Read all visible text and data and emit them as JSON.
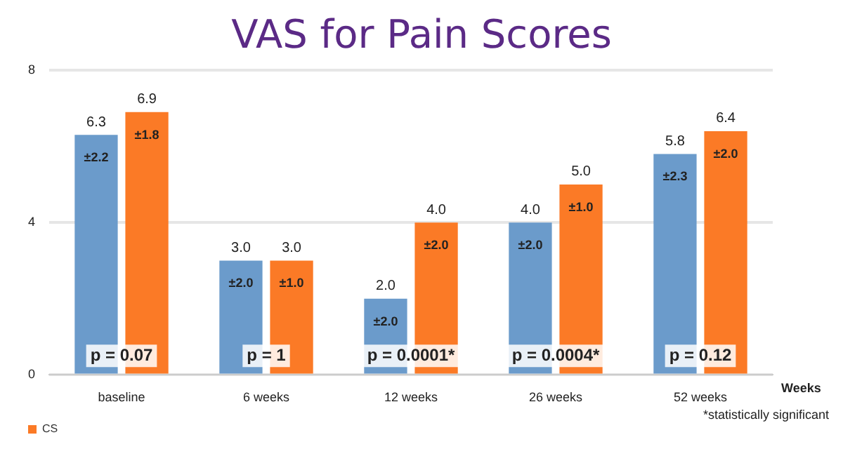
{
  "chart_data": {
    "type": "bar",
    "title": "VAS for Pain Scores",
    "xlabel": "Weeks",
    "categories": [
      "baseline",
      "6 weeks",
      "12 weeks",
      "26 weeks",
      "52 weeks"
    ],
    "series": [
      {
        "color": "#6b9bcb",
        "values": [
          6.3,
          3.0,
          2.0,
          4.0,
          5.8
        ],
        "value_labels": [
          "6.3",
          "3.0",
          "2.0",
          "4.0",
          "5.8"
        ]
      },
      {
        "name": "CS",
        "color": "#fb7a26",
        "values": [
          6.9,
          3.0,
          4.0,
          5.0,
          6.4
        ],
        "value_labels": [
          "6.9",
          "3.0",
          "4.0",
          "5.0",
          "6.4"
        ]
      }
    ],
    "ylim": [
      0,
      8
    ],
    "yticks": [
      0,
      4,
      8
    ],
    "grid": "y",
    "legend": "bottom left",
    "annotations": [
      "±2.2",
      "±1.8",
      "±2.0",
      "±1.0",
      "±2.0",
      "±2.0",
      "±2.0",
      "±1.0",
      "±2.3",
      "±2.0",
      {
        "text": "p = 0.07",
        "x": "baseline",
        "y": 0.5
      },
      {
        "text": "p = 1",
        "x": "6 weeks",
        "y": 0.5
      },
      {
        "text": "p = 0.0001*",
        "x": "12 weeks",
        "y": 0.5
      },
      {
        "text": "p = 0.0004*",
        "x": "26 weeks",
        "y": 0.5
      },
      {
        "text": "p = 0.12",
        "x": "52 weeks",
        "y": 0.5
      },
      "*statistically significant"
    ]
  }
}
